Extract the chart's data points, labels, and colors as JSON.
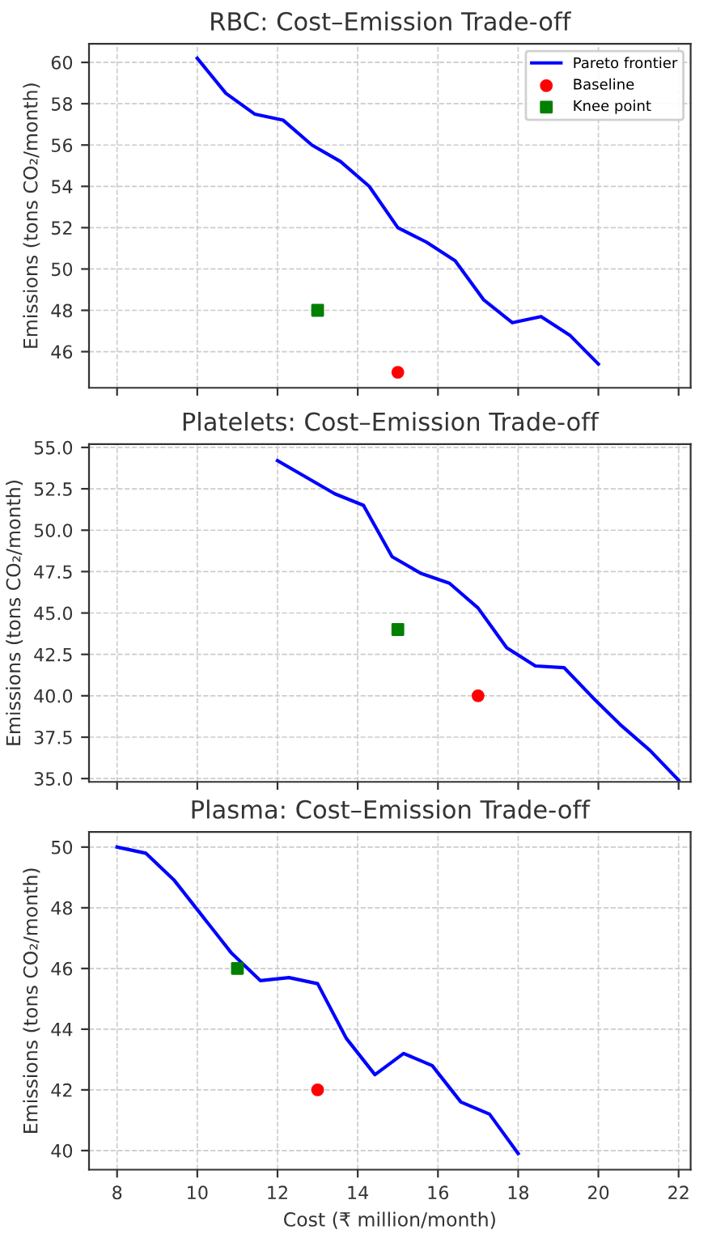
{
  "chart_data": [
    {
      "type": "line",
      "title": "RBC: Cost–Emission Trade-off",
      "ylabel": "Emissions (tons CO₂/month)",
      "xlim": [
        7.3,
        22.3
      ],
      "xticks": [
        8,
        10,
        12,
        14,
        16,
        18,
        20,
        22
      ],
      "ylim": [
        44.25,
        60.9
      ],
      "yticks": [
        46,
        48,
        50,
        52,
        54,
        56,
        58,
        60
      ],
      "grid": true,
      "legend": "top right",
      "tick_labels": "y",
      "series": [
        {
          "name": "Pareto frontier",
          "color": "#0000ff",
          "marker": "none",
          "line_style": "solid",
          "x": [
            10,
            10.714,
            11.429,
            12.143,
            12.857,
            13.571,
            14.286,
            15,
            15.714,
            16.429,
            17.143,
            17.857,
            18.571,
            19.286,
            20
          ],
          "values": [
            60.2,
            58.5,
            57.5,
            57.2,
            56.0,
            55.2,
            54.0,
            52.0,
            51.3,
            50.4,
            48.5,
            47.4,
            47.7,
            46.8,
            45.4
          ]
        },
        {
          "name": "Baseline",
          "type": "scatter",
          "color": "#ff0000",
          "marker": "circle",
          "x": [
            15
          ],
          "values": [
            45
          ]
        },
        {
          "name": "Knee point",
          "type": "scatter",
          "color": "#008000",
          "marker": "square",
          "x": [
            13
          ],
          "values": [
            48
          ]
        }
      ]
    },
    {
      "type": "line",
      "title": "Platelets: Cost–Emission Trade-off",
      "ylabel": "Emissions (tons CO₂/month)",
      "xlim": [
        7.3,
        22.3
      ],
      "xticks": [
        8,
        10,
        12,
        14,
        16,
        18,
        20,
        22
      ],
      "ylim": [
        34.8,
        55.2
      ],
      "yticks": [
        {
          "value": 35,
          "label": "35.0"
        },
        {
          "value": 37.5,
          "label": "37.5"
        },
        {
          "value": 40,
          "label": "40.0"
        },
        {
          "value": 42.5,
          "label": "42.5"
        },
        {
          "value": 45,
          "label": "45.0"
        },
        {
          "value": 47.5,
          "label": "47.5"
        },
        {
          "value": 50,
          "label": "50.0"
        },
        {
          "value": 52.5,
          "label": "52.5"
        },
        {
          "value": 55,
          "label": "55.0"
        }
      ],
      "grid": true,
      "tick_labels": "y",
      "series": [
        {
          "color": "#0000ff",
          "marker": "none",
          "line_style": "solid",
          "x": [
            12,
            12.714,
            13.429,
            14.143,
            14.857,
            15.571,
            16.286,
            17,
            17.714,
            18.429,
            19.143,
            19.857,
            20.571,
            21.286,
            22
          ],
          "values": [
            54.2,
            53.2,
            52.2,
            51.5,
            48.4,
            47.4,
            46.8,
            45.3,
            42.9,
            41.8,
            41.7,
            39.9,
            38.2,
            36.7,
            34.9
          ]
        },
        {
          "type": "scatter",
          "color": "#ff0000",
          "marker": "circle",
          "x": [
            17
          ],
          "values": [
            40
          ]
        },
        {
          "type": "scatter",
          "color": "#008000",
          "marker": "square",
          "x": [
            15
          ],
          "values": [
            44
          ]
        }
      ]
    },
    {
      "type": "line",
      "title": "Plasma: Cost–Emission Trade-off",
      "xlabel": "Cost (₹ million/month)",
      "ylabel": "Emissions (tons CO₂/month)",
      "xlim": [
        7.3,
        22.3
      ],
      "xticks": [
        8,
        10,
        12,
        14,
        16,
        18,
        20,
        22
      ],
      "ylim": [
        39.37,
        50.5
      ],
      "yticks": [
        40,
        42,
        44,
        46,
        48,
        50
      ],
      "grid": true,
      "series": [
        {
          "color": "#0000ff",
          "marker": "none",
          "line_style": "solid",
          "x": [
            8,
            8.714,
            9.429,
            10.143,
            10.857,
            11.571,
            12.286,
            13,
            13.714,
            14.429,
            15.143,
            15.857,
            16.571,
            17.286,
            18
          ],
          "values": [
            50.0,
            49.8,
            48.9,
            47.7,
            46.5,
            45.6,
            45.7,
            45.5,
            43.7,
            42.5,
            43.2,
            42.8,
            41.6,
            41.2,
            39.9
          ]
        },
        {
          "type": "scatter",
          "color": "#ff0000",
          "marker": "circle",
          "x": [
            13
          ],
          "values": [
            42
          ]
        },
        {
          "type": "scatter",
          "color": "#008000",
          "marker": "square",
          "x": [
            11
          ],
          "values": [
            46
          ]
        }
      ]
    }
  ]
}
